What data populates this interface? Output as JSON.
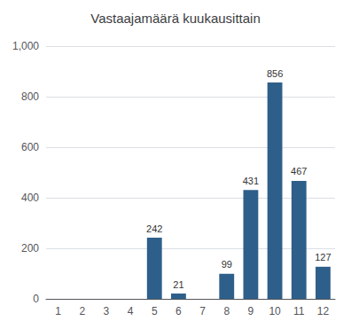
{
  "chart_data": {
    "type": "bar",
    "title": "Vastaajamäärä kuukausittain",
    "categories": [
      "1",
      "2",
      "3",
      "4",
      "5",
      "6",
      "7",
      "8",
      "9",
      "10",
      "11",
      "12"
    ],
    "values": [
      0,
      0,
      0,
      0,
      242,
      21,
      0,
      99,
      431,
      856,
      467,
      127
    ],
    "color": "#2e5f8a",
    "ylim": [
      0,
      1000
    ],
    "yticks": [
      0,
      200,
      400,
      600,
      800,
      {
        "value": 1000,
        "label": "1,000"
      }
    ],
    "grid": true,
    "data_labels": true
  }
}
